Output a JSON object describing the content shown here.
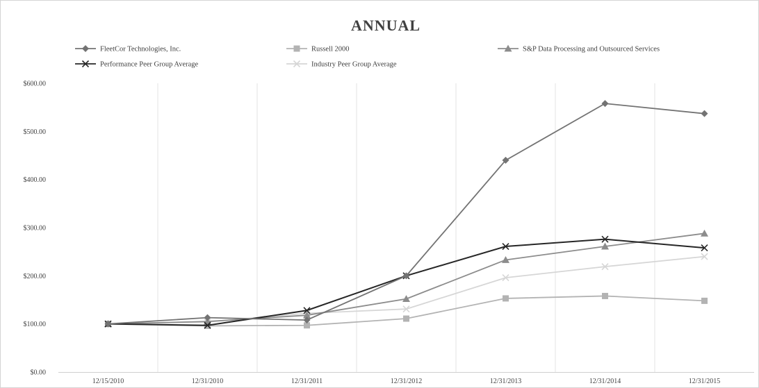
{
  "chart_data": {
    "type": "line",
    "title": "ANNUAL",
    "categories": [
      "12/15/2010",
      "12/31/2010",
      "12/31/2011",
      "12/31/2012",
      "12/31/2013",
      "12/31/2014",
      "12/31/2015"
    ],
    "ylim": [
      0,
      600
    ],
    "yticks": [
      0,
      100,
      200,
      300,
      400,
      500,
      600
    ],
    "ytick_labels": [
      "$0.00",
      "$100.00",
      "$200.00",
      "$300.00",
      "$400.00",
      "$500.00",
      "$600.00"
    ],
    "grid": "vertical",
    "legend_position": "top",
    "series": [
      {
        "name": "FleetCor Technologies, Inc.",
        "marker": "diamond",
        "color": "#737373",
        "values": [
          100,
          113,
          108,
          200,
          440,
          558,
          537
        ]
      },
      {
        "name": "Russell 2000",
        "marker": "square",
        "color": "#b3b3b3",
        "values": [
          100,
          96,
          97,
          111,
          153,
          158,
          148
        ]
      },
      {
        "name": "S&P Data Processing and Outsourced Services",
        "marker": "triangle",
        "color": "#8c8c8c",
        "values": [
          100,
          105,
          118,
          152,
          233,
          261,
          288
        ]
      },
      {
        "name": "Performance Peer Group Average",
        "marker": "x",
        "color": "#262626",
        "values": [
          100,
          97,
          128,
          200,
          261,
          276,
          258
        ]
      },
      {
        "name": "Industry Peer Group Average",
        "marker": "x",
        "color": "#d6d6d6",
        "values": [
          100,
          104,
          122,
          131,
          196,
          219,
          240
        ]
      }
    ]
  }
}
